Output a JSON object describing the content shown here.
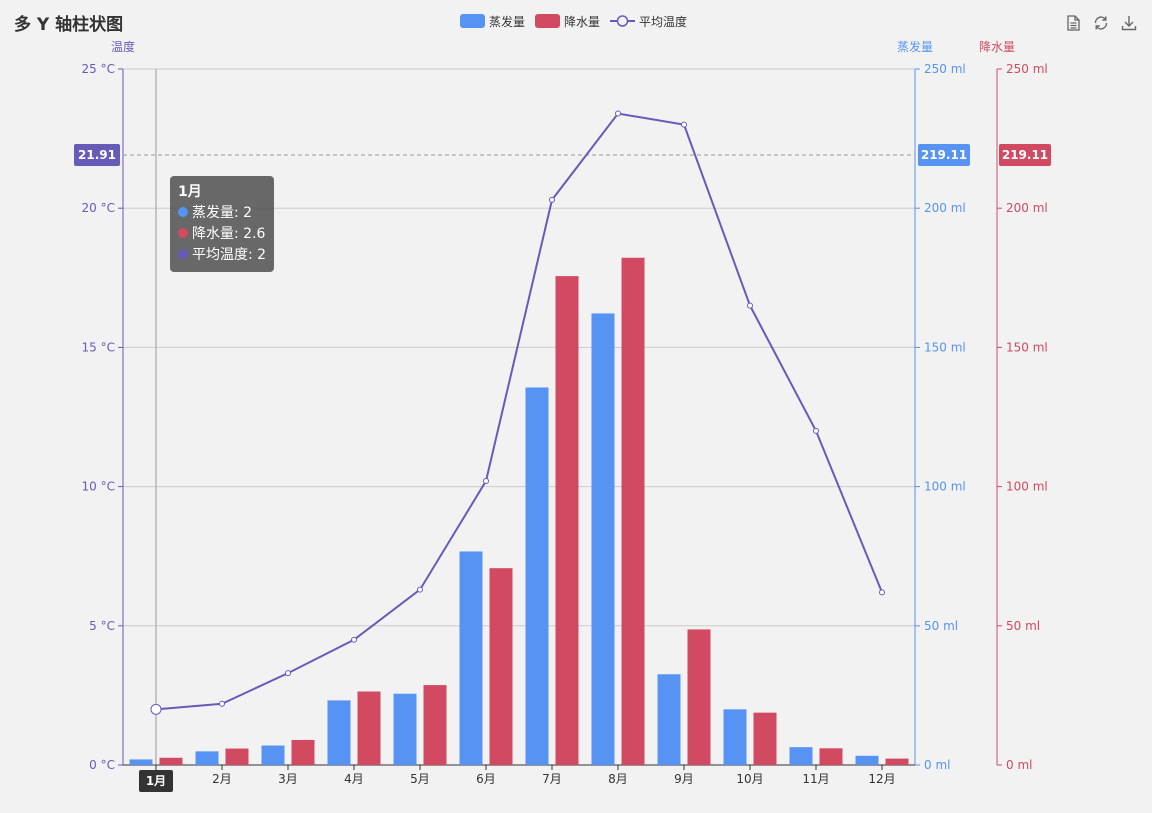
{
  "title": "多 Y 轴柱状图",
  "colors": {
    "evap": "#5793f3",
    "precip": "#d14a61",
    "temp": "#675bba",
    "grid": "#cccccc",
    "axis_label": "#333333"
  },
  "legend": [
    {
      "name": "蒸发量",
      "kind": "bar",
      "color": "#5793f3"
    },
    {
      "name": "降水量",
      "kind": "bar",
      "color": "#d14a61"
    },
    {
      "name": "平均温度",
      "kind": "line",
      "color": "#675bba"
    }
  ],
  "toolbox": [
    "data-view-icon",
    "restore-icon",
    "save-image-icon"
  ],
  "tooltip": {
    "title": "1月",
    "rows": [
      {
        "label": "蒸发量: 2",
        "color": "#5793f3"
      },
      {
        "label": "降水量: 2.6",
        "color": "#d14a61"
      },
      {
        "label": "平均温度: 2",
        "color": "#675bba"
      }
    ]
  },
  "chart_data": {
    "type": "bar",
    "categories": [
      "1月",
      "2月",
      "3月",
      "4月",
      "5月",
      "6月",
      "7月",
      "8月",
      "9月",
      "10月",
      "11月",
      "12月"
    ],
    "series": [
      {
        "name": "蒸发量",
        "type": "bar",
        "axis": "evap",
        "values": [
          2.0,
          4.9,
          7.0,
          23.2,
          25.6,
          76.7,
          135.6,
          162.2,
          32.6,
          20.0,
          6.4,
          3.3
        ]
      },
      {
        "name": "降水量",
        "type": "bar",
        "axis": "precip",
        "values": [
          2.6,
          5.9,
          9.0,
          26.4,
          28.7,
          70.7,
          175.6,
          182.2,
          48.7,
          18.8,
          6.0,
          2.3
        ]
      },
      {
        "name": "平均温度",
        "type": "line",
        "axis": "temp",
        "values": [
          2.0,
          2.2,
          3.3,
          4.5,
          6.3,
          10.2,
          20.3,
          23.4,
          23.0,
          16.5,
          12.0,
          6.2
        ]
      }
    ],
    "axes": {
      "temp": {
        "name": "温度",
        "unit": "°C",
        "ylim": [
          0,
          25
        ],
        "ticks": [
          "0 °C",
          "5 °C",
          "10 °C",
          "15 °C",
          "20 °C",
          "25 °C"
        ]
      },
      "evap": {
        "name": "蒸发量",
        "unit": "ml",
        "ylim": [
          0,
          250
        ],
        "ticks": [
          "0 ml",
          "50 ml",
          "100 ml",
          "150 ml",
          "200 ml",
          "250 ml"
        ]
      },
      "precip": {
        "name": "降水量",
        "unit": "ml",
        "ylim": [
          0,
          250
        ],
        "ticks": [
          "0 ml",
          "50 ml",
          "100 ml",
          "150 ml",
          "200 ml",
          "250 ml"
        ]
      }
    },
    "crosshair": {
      "category_index": 0,
      "temp": "21.91",
      "evap": "219.11",
      "precip": "219.11"
    },
    "grid": true,
    "legend_position": "top-center"
  }
}
